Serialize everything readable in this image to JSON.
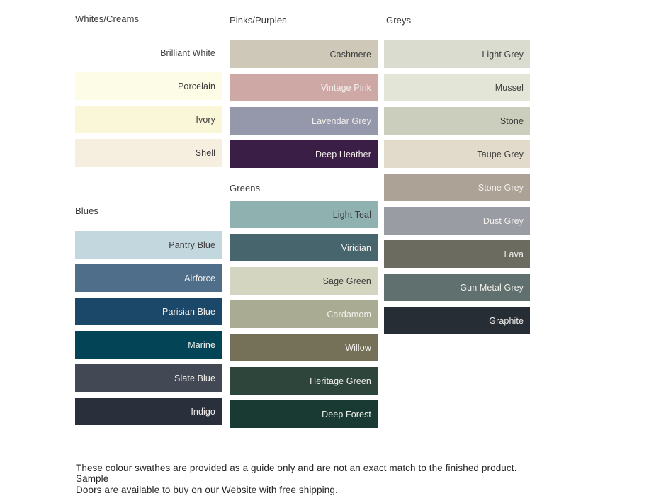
{
  "page": {
    "background": "#ffffff",
    "dark_label_color": "#3d3d3d",
    "light_label_color": "#f2efec"
  },
  "sections": {
    "whites_creams": {
      "label": "Whites/Creams",
      "swatches": [
        {
          "name": "Brilliant White",
          "color": "#ffffff",
          "text_style": "dark"
        },
        {
          "name": "Porcelain",
          "color": "#fdfce7",
          "text_style": "dark"
        },
        {
          "name": "Ivory",
          "color": "#faf6d8",
          "text_style": "dark"
        },
        {
          "name": "Shell",
          "color": "#f6eedf",
          "text_style": "dark"
        }
      ]
    },
    "blues": {
      "label": "Blues",
      "swatches": [
        {
          "name": "Pantry Blue",
          "color": "#c3d8de",
          "text_style": "dark"
        },
        {
          "name": "Airforce",
          "color": "#4e6e8a",
          "text_style": "light"
        },
        {
          "name": "Parisian Blue",
          "color": "#1b4769",
          "text_style": "light"
        },
        {
          "name": "Marine",
          "color": "#034557",
          "text_style": "light"
        },
        {
          "name": "Slate Blue",
          "color": "#424854",
          "text_style": "light"
        },
        {
          "name": "Indigo",
          "color": "#2a303b",
          "text_style": "light"
        }
      ]
    },
    "pinks_purples": {
      "label": "Pinks/Purples",
      "swatches": [
        {
          "name": "Cashmere",
          "color": "#cec8b9",
          "text_style": "dark"
        },
        {
          "name": "Vintage Pink",
          "color": "#cda8a5",
          "text_style": "light"
        },
        {
          "name": "Lavendar Grey",
          "color": "#9597ab",
          "text_style": "light"
        },
        {
          "name": "Deep Heather",
          "color": "#3b1e45",
          "text_style": "light"
        }
      ]
    },
    "greens": {
      "label": "Greens",
      "swatches": [
        {
          "name": "Light Teal",
          "color": "#8fb1b0",
          "text_style": "dark"
        },
        {
          "name": "Viridian",
          "color": "#47656c",
          "text_style": "light"
        },
        {
          "name": "Sage Green",
          "color": "#d3d5c0",
          "text_style": "dark"
        },
        {
          "name": "Cardamom",
          "color": "#a9ac92",
          "text_style": "light"
        },
        {
          "name": "Willow",
          "color": "#757158",
          "text_style": "light"
        },
        {
          "name": "Heritage Green",
          "color": "#2e453c",
          "text_style": "light"
        },
        {
          "name": "Deep Forest",
          "color": "#193a33",
          "text_style": "light"
        }
      ]
    },
    "greys": {
      "label": "Greys",
      "swatches": [
        {
          "name": "Light Grey",
          "color": "#dbdcd0",
          "text_style": "dark"
        },
        {
          "name": "Mussel",
          "color": "#e3e5d6",
          "text_style": "dark"
        },
        {
          "name": "Stone",
          "color": "#cbcdbd",
          "text_style": "dark"
        },
        {
          "name": "Taupe Grey",
          "color": "#e2dbcb",
          "text_style": "dark"
        },
        {
          "name": "Stone Grey",
          "color": "#aca295",
          "text_style": "light"
        },
        {
          "name": "Dust Grey",
          "color": "#9a9ca3",
          "text_style": "light"
        },
        {
          "name": "Lava",
          "color": "#6c6b5f",
          "text_style": "light"
        },
        {
          "name": "Gun Metal Grey",
          "color": "#5f706e",
          "text_style": "light"
        },
        {
          "name": "Graphite",
          "color": "#272d35",
          "text_style": "light"
        }
      ]
    }
  },
  "footer": {
    "line1": "These colour swathes are provided as a guide only and are not an exact match to the finished product.  Sample",
    "line2": "Doors are available to buy on our Website with free shipping."
  }
}
